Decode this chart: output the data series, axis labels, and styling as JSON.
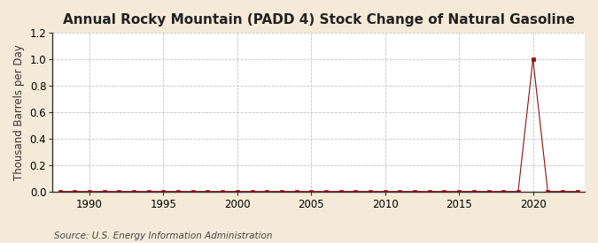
{
  "title": "Annual Rocky Mountain (PADD 4) Stock Change of Natural Gasoline",
  "ylabel": "Thousand Barrels per Day",
  "source": "Source: U.S. Energy Information Administration",
  "xlim": [
    1987.5,
    2023.5
  ],
  "ylim": [
    0.0,
    1.2
  ],
  "yticks": [
    0.0,
    0.2,
    0.4,
    0.6,
    0.8,
    1.0,
    1.2
  ],
  "xticks": [
    1990,
    1995,
    2000,
    2005,
    2010,
    2015,
    2020
  ],
  "background_color": "#f5ead8",
  "plot_bg_color": "#ffffff",
  "line_color": "#8b1010",
  "marker_color": "#8b1010",
  "grid_color": "#bbbbbb",
  "title_fontsize": 11,
  "label_fontsize": 8.5,
  "tick_fontsize": 8.5,
  "source_fontsize": 7.5,
  "years": [
    1988,
    1989,
    1990,
    1991,
    1992,
    1993,
    1994,
    1995,
    1996,
    1997,
    1998,
    1999,
    2000,
    2001,
    2002,
    2003,
    2004,
    2005,
    2006,
    2007,
    2008,
    2009,
    2010,
    2011,
    2012,
    2013,
    2014,
    2015,
    2016,
    2017,
    2018,
    2019,
    2020,
    2021,
    2022,
    2023
  ],
  "values": [
    0.0,
    0.0,
    0.0,
    0.0,
    0.0,
    0.0,
    0.0,
    0.0,
    0.0,
    0.0,
    0.0,
    0.0,
    0.0,
    0.0,
    0.0,
    0.0,
    0.0,
    0.0,
    0.0,
    0.0,
    0.0,
    0.0,
    0.0,
    0.0,
    0.0,
    0.0,
    0.0,
    0.0,
    0.0,
    0.0,
    0.0,
    0.0,
    1.0,
    0.0,
    0.0,
    0.0
  ]
}
